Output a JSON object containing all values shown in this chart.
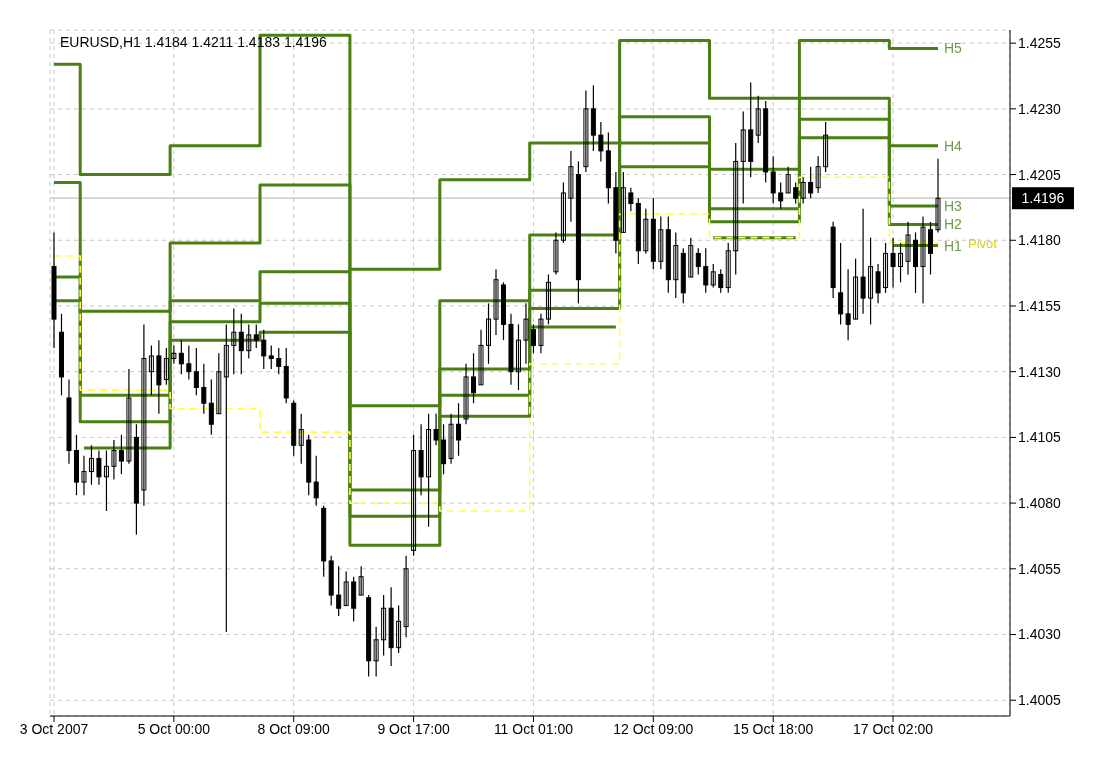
{
  "chart_data": {
    "type": "candlestick",
    "title": "EURUSD,H1  1.4184 1.4211 1.4183 1.4196",
    "color": "#000000",
    "categories": [
      "3 Oct 2007",
      null,
      null,
      null,
      null,
      null,
      null,
      null,
      null,
      null,
      null,
      null,
      null,
      null,
      null,
      null,
      "5 Oct 00:00",
      null,
      null,
      null,
      null,
      null,
      null,
      null,
      null,
      null,
      null,
      null,
      null,
      null,
      null,
      null,
      "8 Oct 09:00",
      null,
      null,
      null,
      null,
      null,
      null,
      null,
      null,
      null,
      null,
      null,
      null,
      null,
      null,
      null,
      "9 Oct 17:00",
      null,
      null,
      null,
      null,
      null,
      null,
      null,
      null,
      null,
      null,
      null,
      null,
      null,
      null,
      null,
      "11 Oct 01:00",
      null,
      null,
      null,
      null,
      null,
      null,
      null,
      null,
      null,
      null,
      null,
      null,
      null,
      null,
      null,
      "12 Oct 09:00",
      null,
      null,
      null,
      null,
      null,
      null,
      null,
      null,
      null,
      null,
      null,
      null,
      null,
      null,
      null,
      "15 Oct 18:00",
      null,
      null,
      null,
      null,
      null,
      null,
      null,
      null,
      null,
      null,
      null,
      null,
      null,
      null,
      null,
      "17 Oct 02:00",
      null,
      null,
      null,
      null,
      null,
      null
    ],
    "ohlc": [
      [
        1.417,
        1.4183,
        1.4139,
        1.415
      ],
      [
        1.4145,
        1.4152,
        1.4121,
        1.4128
      ],
      [
        1.412,
        1.4127,
        1.4095,
        1.41
      ],
      [
        1.41,
        1.4106,
        1.4083,
        1.4088
      ],
      [
        1.4088,
        1.4098,
        1.4083,
        1.4092
      ],
      [
        1.4092,
        1.4102,
        1.4087,
        1.4097
      ],
      [
        1.4097,
        1.41,
        1.4087,
        1.409
      ],
      [
        1.409,
        1.41,
        1.4077,
        1.4094
      ],
      [
        1.4094,
        1.4104,
        1.4089,
        1.41
      ],
      [
        1.41,
        1.4106,
        1.4091,
        1.4096
      ],
      [
        1.4096,
        1.4131,
        1.4095,
        1.412
      ],
      [
        1.4105,
        1.411,
        1.4068,
        1.408
      ],
      [
        1.4085,
        1.4148,
        1.4079,
        1.4135
      ],
      [
        1.413,
        1.414,
        1.4121,
        1.4136
      ],
      [
        1.4136,
        1.4142,
        1.4114,
        1.4125
      ],
      [
        1.4127,
        1.4139,
        1.4125,
        1.4135
      ],
      [
        1.4135,
        1.414,
        1.4133,
        1.4137
      ],
      [
        1.4137,
        1.4142,
        1.4129,
        1.4133
      ],
      [
        1.4133,
        1.414,
        1.4127,
        1.413
      ],
      [
        1.413,
        1.4139,
        1.4121,
        1.4124
      ],
      [
        1.4124,
        1.4133,
        1.4114,
        1.4118
      ],
      [
        1.4118,
        1.4127,
        1.4106,
        1.411
      ],
      [
        1.4114,
        1.4137,
        1.4114,
        1.413
      ],
      [
        1.4128,
        1.4148,
        1.4031,
        1.414
      ],
      [
        1.414,
        1.4154,
        1.4129,
        1.4145
      ],
      [
        1.4145,
        1.4152,
        1.4129,
        1.4138
      ],
      [
        1.4138,
        1.4148,
        1.4135,
        1.4144
      ],
      [
        1.4144,
        1.4148,
        1.4139,
        1.4142
      ],
      [
        1.4142,
        1.4146,
        1.4131,
        1.4136
      ],
      [
        1.4136,
        1.414,
        1.4131,
        1.4135
      ],
      [
        1.4135,
        1.4139,
        1.4129,
        1.4132
      ],
      [
        1.4132,
        1.4139,
        1.4118,
        1.412
      ],
      [
        1.4118,
        1.4119,
        1.4098,
        1.4102
      ],
      [
        1.4102,
        1.4114,
        1.4095,
        1.4108
      ],
      [
        1.4104,
        1.4106,
        1.4083,
        1.4088
      ],
      [
        1.4088,
        1.4098,
        1.4079,
        1.4082
      ],
      [
        1.4078,
        1.4079,
        1.4052,
        1.4058
      ],
      [
        1.4058,
        1.406,
        1.4041,
        1.4045
      ],
      [
        1.4045,
        1.4056,
        1.4037,
        1.404
      ],
      [
        1.4041,
        1.4054,
        1.4041,
        1.405
      ],
      [
        1.405,
        1.4052,
        1.4035,
        1.404
      ],
      [
        1.4045,
        1.4056,
        1.4045,
        1.4052
      ],
      [
        1.4044,
        1.4045,
        1.4014,
        1.402
      ],
      [
        1.402,
        1.4033,
        1.4014,
        1.4028
      ],
      [
        1.4028,
        1.4045,
        1.4022,
        1.404
      ],
      [
        1.404,
        1.4048,
        1.4018,
        1.4025
      ],
      [
        1.4025,
        1.4041,
        1.4023,
        1.4035
      ],
      [
        1.4033,
        1.406,
        1.4029,
        1.4055
      ],
      [
        1.4062,
        1.4106,
        1.406,
        1.41
      ],
      [
        1.41,
        1.411,
        1.4083,
        1.409
      ],
      [
        1.409,
        1.4114,
        1.4071,
        1.4108
      ],
      [
        1.4108,
        1.4114,
        1.4102,
        1.4104
      ],
      [
        1.4104,
        1.411,
        1.4091,
        1.4095
      ],
      [
        1.4097,
        1.4114,
        1.4095,
        1.411
      ],
      [
        1.411,
        1.4118,
        1.4098,
        1.4104
      ],
      [
        1.4112,
        1.4133,
        1.411,
        1.4128
      ],
      [
        1.4128,
        1.4137,
        1.4118,
        1.4122
      ],
      [
        1.4125,
        1.4146,
        1.4125,
        1.414
      ],
      [
        1.414,
        1.4156,
        1.4133,
        1.415
      ],
      [
        1.415,
        1.4169,
        1.4144,
        1.4165
      ],
      [
        1.4163,
        1.4164,
        1.4142,
        1.4148
      ],
      [
        1.4148,
        1.4152,
        1.4125,
        1.413
      ],
      [
        1.413,
        1.4148,
        1.4123,
        1.4142
      ],
      [
        1.4142,
        1.4156,
        1.4133,
        1.415
      ],
      [
        1.4146,
        1.4148,
        1.4137,
        1.414
      ],
      [
        1.414,
        1.4152,
        1.4137,
        1.415
      ],
      [
        1.415,
        1.4167,
        1.4148,
        1.4164
      ],
      [
        1.4168,
        1.4183,
        1.4167,
        1.418
      ],
      [
        1.418,
        1.4202,
        1.4179,
        1.4198
      ],
      [
        1.4196,
        1.4214,
        1.4187,
        1.4208
      ],
      [
        1.4205,
        1.421,
        1.4156,
        1.4165
      ],
      [
        1.4208,
        1.4237,
        1.4206,
        1.423
      ],
      [
        1.423,
        1.4239,
        1.4214,
        1.422
      ],
      [
        1.422,
        1.4225,
        1.421,
        1.4214
      ],
      [
        1.4214,
        1.4221,
        1.4194,
        1.42
      ],
      [
        1.42,
        1.4206,
        1.4175,
        1.418
      ],
      [
        1.4183,
        1.4206,
        1.4183,
        1.42
      ],
      [
        1.4198,
        1.42,
        1.4191,
        1.4194
      ],
      [
        1.4194,
        1.4196,
        1.4171,
        1.4176
      ],
      [
        1.4176,
        1.4192,
        1.4175,
        1.4188
      ],
      [
        1.4188,
        1.4196,
        1.4169,
        1.4172
      ],
      [
        1.4172,
        1.4189,
        1.4169,
        1.4184
      ],
      [
        1.4184,
        1.4189,
        1.416,
        1.4165
      ],
      [
        1.4165,
        1.4183,
        1.4158,
        1.4178
      ],
      [
        1.4175,
        1.4177,
        1.4156,
        1.416
      ],
      [
        1.4166,
        1.4181,
        1.4166,
        1.4178
      ],
      [
        1.4175,
        1.4177,
        1.4167,
        1.417
      ],
      [
        1.417,
        1.4177,
        1.416,
        1.4163
      ],
      [
        1.4163,
        1.4171,
        1.4162,
        1.4168
      ],
      [
        1.4167,
        1.4169,
        1.416,
        1.4162
      ],
      [
        1.4162,
        1.4179,
        1.416,
        1.4176
      ],
      [
        1.4176,
        1.4217,
        1.4167,
        1.421
      ],
      [
        1.421,
        1.4229,
        1.4194,
        1.4222
      ],
      [
        1.4222,
        1.424,
        1.4204,
        1.421
      ],
      [
        1.422,
        1.4235,
        1.4217,
        1.423
      ],
      [
        1.423,
        1.4233,
        1.4202,
        1.4206
      ],
      [
        1.4206,
        1.4212,
        1.4194,
        1.4198
      ],
      [
        1.4198,
        1.4202,
        1.4192,
        1.4195
      ],
      [
        1.4198,
        1.4208,
        1.4198,
        1.4205
      ],
      [
        1.42,
        1.4202,
        1.4194,
        1.4196
      ],
      [
        1.4196,
        1.4204,
        1.4194,
        1.4202
      ],
      [
        1.4202,
        1.4208,
        1.4196,
        1.4198
      ],
      [
        1.42,
        1.4212,
        1.4198,
        1.4208
      ],
      [
        1.4208,
        1.4225,
        1.4206,
        1.422
      ],
      [
        1.4185,
        1.4187,
        1.4158,
        1.4162
      ],
      [
        1.416,
        1.4179,
        1.4148,
        1.4152
      ],
      [
        1.4152,
        1.4169,
        1.4142,
        1.4148
      ],
      [
        1.415,
        1.4173,
        1.415,
        1.4166
      ],
      [
        1.4166,
        1.4192,
        1.4152,
        1.4158
      ],
      [
        1.4158,
        1.4181,
        1.4148,
        1.417
      ],
      [
        1.4168,
        1.4171,
        1.4156,
        1.416
      ],
      [
        1.4162,
        1.4179,
        1.416,
        1.4175
      ],
      [
        1.4175,
        1.4181,
        1.4162,
        1.417
      ],
      [
        1.417,
        1.4179,
        1.4164,
        1.4175
      ],
      [
        1.4172,
        1.4187,
        1.4167,
        1.4182
      ],
      [
        1.418,
        1.4183,
        1.416,
        1.417
      ],
      [
        1.417,
        1.4189,
        1.4156,
        1.4185
      ],
      [
        1.4184,
        1.4187,
        1.4167,
        1.4175
      ],
      [
        1.4184,
        1.4211,
        1.4183,
        1.4196
      ]
    ],
    "ylim": [
      1.3999,
      1.426
    ],
    "yticks": [
      1.4005,
      {
        "value": 1.403,
        "label": "1.4030"
      },
      1.4055,
      {
        "value": 1.408,
        "label": "1.4080"
      },
      1.4105,
      {
        "value": 1.413,
        "label": "1.4130"
      },
      1.4155,
      {
        "value": 1.418,
        "label": "1.4180"
      },
      1.4205,
      {
        "value": 1.423,
        "label": "1.4230"
      },
      1.4255
    ],
    "grid": true,
    "series": [
      {
        "name": "H5",
        "type": "step",
        "color": "#4b7f14",
        "values": [
          1.4247,
          1.4247,
          1.4247,
          1.4247,
          1.4205,
          1.4205,
          1.4205,
          1.4205,
          1.4205,
          1.4205,
          1.4205,
          1.4205,
          1.4205,
          1.4205,
          1.4205,
          1.4205,
          1.4216,
          1.4216,
          1.4216,
          1.4216,
          1.4216,
          1.4216,
          1.4216,
          1.4216,
          1.4216,
          1.4216,
          1.4216,
          1.4216,
          1.4258,
          1.4258,
          1.4258,
          1.4258,
          1.4258,
          1.4258,
          1.4258,
          1.4258,
          1.4258,
          1.4258,
          1.4258,
          1.4258,
          1.4169,
          1.4169,
          1.4169,
          1.4169,
          1.4169,
          1.4169,
          1.4169,
          1.4169,
          1.4169,
          1.4169,
          1.4169,
          1.4169,
          1.4203,
          1.4203,
          1.4203,
          1.4203,
          1.4203,
          1.4203,
          1.4203,
          1.4203,
          1.4203,
          1.4203,
          1.4203,
          1.4203,
          1.4217,
          1.4217,
          1.4217,
          1.4217,
          1.4217,
          1.4217,
          1.4217,
          1.4217,
          1.4217,
          1.4217,
          1.4217,
          1.4217,
          1.4256,
          1.4256,
          1.4256,
          1.4256,
          1.4256,
          1.4256,
          1.4256,
          1.4256,
          1.4256,
          1.4256,
          1.4256,
          1.4256,
          1.4234,
          1.4234,
          1.4234,
          1.4234,
          1.4234,
          1.4234,
          1.4234,
          1.4234,
          1.4234,
          1.4234,
          1.4234,
          1.4234,
          1.4256,
          1.4256,
          1.4256,
          1.4256,
          1.4256,
          1.4256,
          1.4256,
          1.4256,
          1.4256,
          1.4256,
          1.4256,
          1.4256,
          1.4253,
          1.4253,
          1.4253,
          1.4253,
          1.4253,
          1.4253,
          1.4253
        ]
      },
      {
        "name": "H4",
        "type": "step",
        "color": "#4b7f14",
        "values": [
          1.4202,
          1.4202,
          1.4202,
          1.4202,
          1.4153,
          1.4153,
          1.4153,
          1.4153,
          1.4153,
          1.4153,
          1.4153,
          1.4153,
          1.4153,
          1.4153,
          1.4153,
          1.4153,
          1.4179,
          1.4179,
          1.4179,
          1.4179,
          1.4179,
          1.4179,
          1.4179,
          1.4179,
          1.4179,
          1.4179,
          1.4179,
          1.4179,
          1.4201,
          1.4201,
          1.4201,
          1.4201,
          1.4201,
          1.4201,
          1.4201,
          1.4201,
          1.4201,
          1.4201,
          1.4201,
          1.4201,
          1.4117,
          1.4117,
          1.4117,
          1.4117,
          1.4117,
          1.4117,
          1.4117,
          1.4117,
          1.4117,
          1.4117,
          1.4117,
          1.4117,
          1.4157,
          1.4157,
          1.4157,
          1.4157,
          1.4157,
          1.4157,
          1.4157,
          1.4157,
          1.4157,
          1.4157,
          1.4157,
          1.4157,
          1.4182,
          1.4182,
          1.4182,
          1.4182,
          1.4182,
          1.4182,
          1.4182,
          1.4182,
          1.4182,
          1.4182,
          1.4182,
          1.4182,
          1.4227,
          1.4227,
          1.4227,
          1.4227,
          1.4227,
          1.4227,
          1.4227,
          1.4227,
          1.4227,
          1.4227,
          1.4227,
          1.4227,
          1.4207,
          1.4207,
          1.4207,
          1.4207,
          1.4207,
          1.4207,
          1.4207,
          1.4207,
          1.4207,
          1.4207,
          1.4207,
          1.4207,
          1.4234,
          1.4234,
          1.4234,
          1.4234,
          1.4234,
          1.4234,
          1.4234,
          1.4234,
          1.4234,
          1.4234,
          1.4234,
          1.4234,
          1.4216,
          1.4216,
          1.4216,
          1.4216,
          1.4216,
          1.4216,
          1.4216
        ]
      },
      {
        "name": "H3",
        "type": "step",
        "color": "#4b7f14",
        "values": [
          1.4166,
          1.4166,
          1.4166,
          1.4166,
          1.4121,
          1.4121,
          1.4121,
          1.4121,
          1.4121,
          1.4121,
          1.4121,
          1.4121,
          1.4121,
          1.4121,
          1.4121,
          1.4121,
          1.4157,
          1.4157,
          1.4157,
          1.4157,
          1.4157,
          1.4157,
          1.4157,
          1.4157,
          1.4157,
          1.4157,
          1.4157,
          1.4157,
          1.4168,
          1.4168,
          1.4168,
          1.4168,
          1.4168,
          1.4168,
          1.4168,
          1.4168,
          1.4168,
          1.4168,
          1.4168,
          1.4168,
          1.4085,
          1.4085,
          1.4085,
          1.4085,
          1.4085,
          1.4085,
          1.4085,
          1.4085,
          1.4085,
          1.4085,
          1.4085,
          1.4085,
          1.4131,
          1.4131,
          1.4131,
          1.4131,
          1.4131,
          1.4131,
          1.4131,
          1.4131,
          1.4131,
          1.4131,
          1.4131,
          1.4131,
          1.4161,
          1.4161,
          1.4161,
          1.4161,
          1.4161,
          1.4161,
          1.4161,
          1.4161,
          1.4161,
          1.4161,
          1.4161,
          1.4161,
          1.4217,
          1.4217,
          1.4217,
          1.4217,
          1.4217,
          1.4217,
          1.4217,
          1.4217,
          1.4217,
          1.4217,
          1.4217,
          1.4217,
          1.4192,
          1.4192,
          1.4192,
          1.4192,
          1.4192,
          1.4192,
          1.4192,
          1.4192,
          1.4192,
          1.4192,
          1.4192,
          1.4192,
          1.4226,
          1.4226,
          1.4226,
          1.4226,
          1.4226,
          1.4226,
          1.4226,
          1.4226,
          1.4226,
          1.4226,
          1.4226,
          1.4226,
          1.4193,
          1.4193,
          1.4193,
          1.4193,
          1.4193,
          1.4193,
          1.4193
        ]
      },
      {
        "name": "H2",
        "type": "step",
        "color": "#4b7f14",
        "values": [
          1.4157,
          1.4157,
          1.4157,
          1.4157,
          1.4111,
          1.4111,
          1.4111,
          1.4111,
          1.4111,
          1.4111,
          1.4111,
          1.4111,
          1.4111,
          1.4111,
          1.4111,
          1.4111,
          1.4149,
          1.4149,
          1.4149,
          1.4149,
          1.4149,
          1.4149,
          1.4149,
          1.4149,
          1.4149,
          1.4149,
          1.4149,
          1.4149,
          1.4156,
          1.4156,
          1.4156,
          1.4156,
          1.4156,
          1.4156,
          1.4156,
          1.4156,
          1.4156,
          1.4156,
          1.4156,
          1.4156,
          1.4075,
          1.4075,
          1.4075,
          1.4075,
          1.4075,
          1.4075,
          1.4075,
          1.4075,
          1.4075,
          1.4075,
          1.4075,
          1.4075,
          1.4121,
          1.4121,
          1.4121,
          1.4121,
          1.4121,
          1.4121,
          1.4121,
          1.4121,
          1.4121,
          1.4121,
          1.4121,
          1.4121,
          1.4154,
          1.4154,
          1.4154,
          1.4154,
          1.4154,
          1.4154,
          1.4154,
          1.4154,
          1.4154,
          1.4154,
          1.4154,
          1.4154,
          1.4208,
          1.4208,
          1.4208,
          1.4208,
          1.4208,
          1.4208,
          1.4208,
          1.4208,
          1.4208,
          1.4208,
          1.4208,
          1.4208,
          1.4187,
          1.4187,
          1.4187,
          1.4187,
          1.4187,
          1.4187,
          1.4187,
          1.4187,
          1.4187,
          1.4187,
          1.4187,
          1.4187,
          1.4219,
          1.4219,
          1.4219,
          1.4219,
          1.4219,
          1.4219,
          1.4219,
          1.4219,
          1.4219,
          1.4219,
          1.4219,
          1.4219,
          1.4186,
          1.4186,
          1.4186,
          1.4186,
          1.4186,
          1.4186,
          1.4186
        ]
      },
      {
        "name": "H1",
        "type": "step",
        "color": "#4b7f14",
        "values": [
          null,
          null,
          null,
          null,
          1.4101,
          1.4101,
          1.4101,
          1.4101,
          1.4101,
          1.4101,
          1.4101,
          1.4101,
          1.4101,
          1.4101,
          1.4101,
          1.4101,
          1.4142,
          1.4142,
          1.4142,
          1.4142,
          1.4142,
          1.4142,
          1.4142,
          1.4142,
          1.4142,
          1.4142,
          1.4142,
          1.4142,
          1.4145,
          1.4145,
          1.4145,
          1.4145,
          1.4145,
          1.4145,
          1.4145,
          1.4145,
          1.4145,
          1.4145,
          1.4145,
          1.4145,
          1.4064,
          1.4064,
          1.4064,
          1.4064,
          1.4064,
          1.4064,
          1.4064,
          1.4064,
          1.4064,
          1.4064,
          1.4064,
          1.4064,
          1.4113,
          1.4113,
          1.4113,
          1.4113,
          1.4113,
          1.4113,
          1.4113,
          1.4113,
          1.4113,
          1.4113,
          1.4113,
          1.4113,
          1.4147,
          1.4147,
          1.4147,
          1.4147,
          1.4147,
          1.4147,
          1.4147,
          1.4147,
          1.4147,
          1.4147,
          1.4147,
          1.4147,
          null,
          null,
          null,
          null,
          null,
          null,
          null,
          null,
          null,
          null,
          null,
          null,
          1.4181,
          1.4181,
          1.4181,
          1.4181,
          1.4181,
          1.4181,
          1.4181,
          1.4181,
          1.4181,
          1.4181,
          1.4181,
          1.4181,
          null,
          null,
          null,
          null,
          null,
          null,
          null,
          null,
          null,
          null,
          null,
          null,
          1.4178,
          1.4178,
          1.4178,
          1.4178,
          1.4178,
          1.4178,
          1.4178
        ]
      },
      {
        "name": "Pivot",
        "type": "step",
        "color": "#ffff40",
        "line_style": "dashed",
        "values": [
          1.4174,
          1.4174,
          1.4174,
          1.4174,
          1.4123,
          1.4123,
          1.4123,
          1.4123,
          1.4123,
          1.4123,
          1.4123,
          1.4123,
          1.4123,
          1.4123,
          1.4123,
          1.4123,
          1.4116,
          1.4116,
          1.4116,
          1.4116,
          1.4116,
          1.4116,
          1.4116,
          1.4116,
          1.4116,
          1.4116,
          1.4116,
          1.4116,
          1.4107,
          1.4107,
          1.4107,
          1.4107,
          1.4107,
          1.4107,
          1.4107,
          1.4107,
          1.4107,
          1.4107,
          1.4107,
          1.4107,
          1.408,
          1.408,
          1.408,
          1.408,
          1.408,
          1.408,
          1.408,
          1.408,
          1.408,
          1.408,
          1.408,
          1.408,
          1.4077,
          1.4077,
          1.4077,
          1.4077,
          1.4077,
          1.4077,
          1.4077,
          1.4077,
          1.4077,
          1.4077,
          1.4077,
          1.4077,
          1.4133,
          1.4133,
          1.4133,
          1.4133,
          1.4133,
          1.4133,
          1.4133,
          1.4133,
          1.4133,
          1.4133,
          1.4133,
          1.4133,
          1.419,
          1.419,
          1.419,
          1.419,
          1.419,
          1.419,
          1.419,
          1.419,
          1.419,
          1.419,
          1.419,
          1.419,
          1.4181,
          1.4181,
          1.4181,
          1.4181,
          1.4181,
          1.4181,
          1.4181,
          1.4181,
          1.4181,
          1.4181,
          1.4181,
          1.4181,
          1.4204,
          1.4204,
          1.4204,
          1.4204,
          1.4204,
          1.4204,
          1.4204,
          1.4204,
          1.4204,
          1.4204,
          1.4204,
          1.4204,
          1.4179,
          1.4179,
          1.4179,
          1.4179,
          1.4179,
          1.4179,
          1.4179
        ]
      }
    ],
    "ref_lines": [
      {
        "axis": "y",
        "value": 1.4196,
        "label": "1.4196",
        "color": "#c0c0c0"
      }
    ]
  }
}
